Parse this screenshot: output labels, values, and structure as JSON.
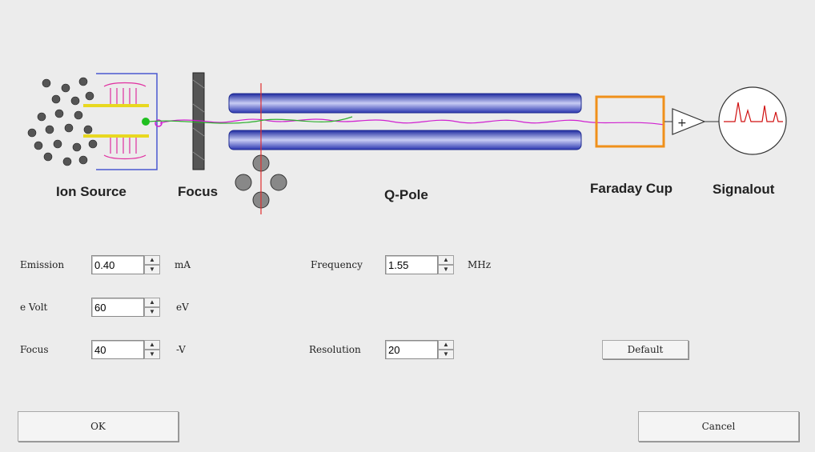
{
  "diagram": {
    "labels": {
      "ion_source": "Ion Source",
      "focus": "Focus",
      "q_pole": "Q-Pole",
      "faraday_cup": "Faraday Cup",
      "signalout": "Signalout"
    },
    "colors": {
      "rod": "#3a46c8",
      "faraday": "#f0901a",
      "ion_path": "#d020d0",
      "stray_path": "#30b030",
      "peak": "#d01010"
    }
  },
  "params": {
    "emission": {
      "label": "Emission",
      "value": "0.40",
      "unit": "mA"
    },
    "evolt": {
      "label": "e Volt",
      "value": "60",
      "unit": "eV"
    },
    "focus": {
      "label": "Focus",
      "value": "40",
      "unit": "-V"
    },
    "frequency": {
      "label": "Frequency",
      "value": "1.55",
      "unit": "MHz"
    },
    "resolution": {
      "label": "Resolution",
      "value": "20"
    }
  },
  "buttons": {
    "default": "Default",
    "ok": "OK",
    "cancel": "Cancel"
  },
  "spinner": {
    "up_glyph": "▲",
    "down_glyph": "▼"
  }
}
